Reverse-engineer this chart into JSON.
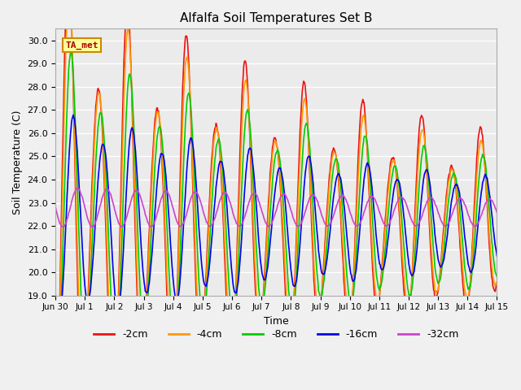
{
  "title": "Alfalfa Soil Temperatures Set B",
  "xlabel": "Time",
  "ylabel": "Soil Temperature (C)",
  "ylim": [
    19.0,
    30.5
  ],
  "yticks": [
    19.0,
    20.0,
    21.0,
    22.0,
    23.0,
    24.0,
    25.0,
    26.0,
    27.0,
    28.0,
    29.0,
    30.0
  ],
  "bg_color": "#f0f0f0",
  "plot_bg_color": "#f0f0f0",
  "line_colors": {
    "-2cm": "#ee1111",
    "-4cm": "#ff9900",
    "-8cm": "#00cc00",
    "-16cm": "#0000ee",
    "-32cm": "#cc44cc"
  },
  "annotation_text": "TA_met",
  "legend_labels": [
    "-2cm",
    "-4cm",
    "-8cm",
    "-16cm",
    "-32cm"
  ],
  "x_tick_labels": [
    "Jun 30",
    "Jul 1",
    "Jul 2",
    "Jul 3",
    "Jul 4",
    "Jul 5",
    "Jul 6",
    "Jul 7",
    "Jul 8",
    "Jul 9",
    "Jul 10",
    "Jul 11",
    "Jul 12",
    "Jul 13",
    "Jul 14",
    "Jul 15"
  ],
  "num_days": 16,
  "points_per_day": 48
}
